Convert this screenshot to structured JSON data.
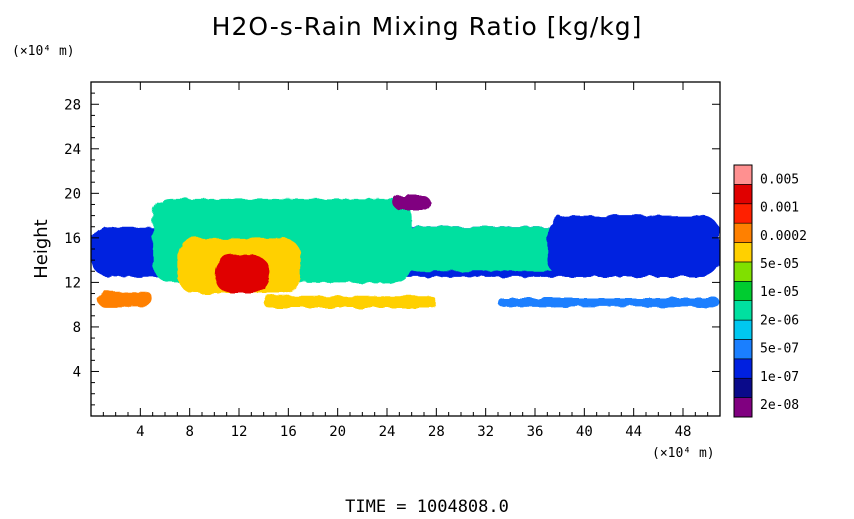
{
  "title": "H2O-s-Rain Mixing Ratio [kg/kg]",
  "time_label": "TIME  =  1004808.0",
  "colorbar": {
    "colors": [
      "#800080",
      "#0a0a8a",
      "#0020e0",
      "#1a7fff",
      "#00c8f0",
      "#00e0a0",
      "#00cc30",
      "#80e000",
      "#ffd000",
      "#ff8000",
      "#ff2000",
      "#e00000",
      "#ff9090"
    ],
    "labels": [
      "2e-08",
      "1e-07",
      "5e-07",
      "2e-06",
      "1e-05",
      "5e-05",
      "0.0002",
      "0.001",
      "0.005"
    ]
  },
  "chart_data": {
    "type": "heatmap",
    "title": "H2O-s-Rain Mixing Ratio [kg/kg]",
    "ylabel": "Height",
    "x_unit": "(×10⁴ m)",
    "y_unit": "(×10⁴ m)",
    "xlim": [
      0,
      51
    ],
    "ylim": [
      0,
      30
    ],
    "xticks": [
      "4",
      "8",
      "12",
      "16",
      "20",
      "24",
      "28",
      "32",
      "36",
      "40",
      "44",
      "48"
    ],
    "yticks": [
      "4",
      "8",
      "12",
      "16",
      "20",
      "24",
      "28"
    ],
    "levels": [
      "2e-08",
      "1e-07",
      "5e-07",
      "2e-06",
      "1e-05",
      "5e-05",
      "0.0002",
      "0.001",
      "0.005"
    ],
    "regions": [
      {
        "x": [
          0,
          51
        ],
        "y": [
          12.5,
          17
        ],
        "level": 1
      },
      {
        "x": [
          5,
          26
        ],
        "y": [
          12,
          19.5
        ],
        "level": 3
      },
      {
        "x": [
          7,
          17
        ],
        "y": [
          11,
          16
        ],
        "level": 5
      },
      {
        "x": [
          10,
          14.5
        ],
        "y": [
          11,
          14.5
        ],
        "level": 7
      },
      {
        "x": [
          0.5,
          5
        ],
        "y": [
          9.8,
          11.2
        ],
        "level": 6
      },
      {
        "x": [
          14,
          28
        ],
        "y": [
          9.7,
          10.8
        ],
        "level": 5
      },
      {
        "x": [
          25,
          39
        ],
        "y": [
          13,
          17
        ],
        "level": 3
      },
      {
        "x": [
          37,
          51
        ],
        "y": [
          12.5,
          18
        ],
        "level": 1
      },
      {
        "x": [
          24.5,
          27.5
        ],
        "y": [
          18.5,
          19.8
        ],
        "level": 0
      },
      {
        "x": [
          33,
          51
        ],
        "y": [
          9.8,
          10.6
        ],
        "level": 2
      }
    ]
  }
}
